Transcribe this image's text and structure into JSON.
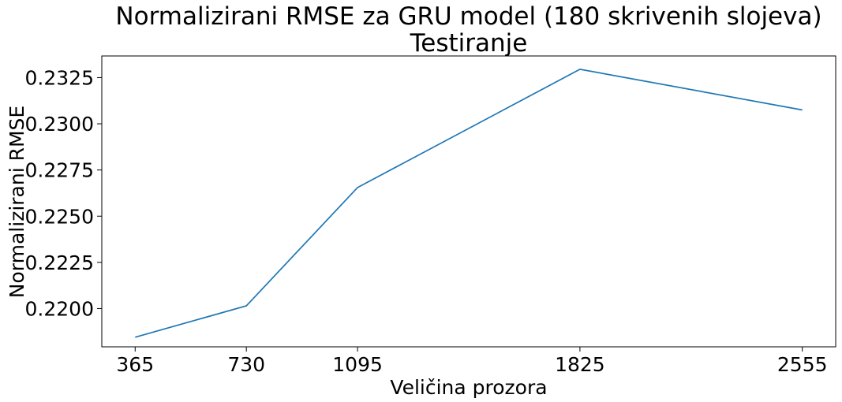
{
  "chart_data": {
    "type": "line",
    "title": "Normalizirani RMSE za GRU model (180 skrivenih slojeva)",
    "subtitle": "Testiranje",
    "xlabel": "Veličina prozora",
    "ylabel": "Normalizirani RMSE",
    "x": [
      365,
      730,
      1095,
      1825,
      2555
    ],
    "series": [
      {
        "values": [
          0.21845,
          0.22015,
          0.22655,
          0.23295,
          0.23075
        ]
      }
    ],
    "xticks": [
      365,
      730,
      1095,
      1825,
      2555
    ],
    "xtick_labels": [
      "365",
      "730",
      "1095",
      "1825",
      "2555"
    ],
    "yticks": [
      0.22,
      0.2225,
      0.225,
      0.2275,
      0.23,
      0.2325
    ],
    "ytick_labels": [
      "0.2200",
      "0.2225",
      "0.2250",
      "0.2275",
      "0.2300",
      "0.2325"
    ],
    "xlim": [
      255.5,
      2664.5
    ],
    "ylim": [
      0.21793,
      0.23367
    ],
    "grid": false,
    "legend": false,
    "colors": {
      "line": "#1f77b4",
      "axes": "#000000",
      "background": "#ffffff"
    }
  }
}
